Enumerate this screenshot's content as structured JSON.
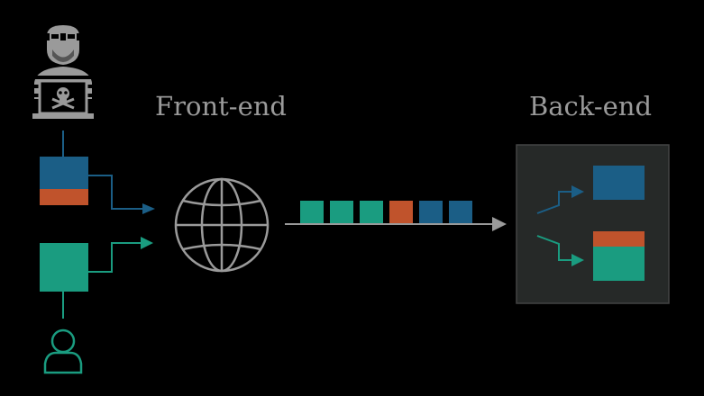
{
  "labels": {
    "front_end": "Front-end",
    "back_end": "Back-end"
  },
  "colors": {
    "background": "#000000",
    "blue": "#1b5e86",
    "orange": "#c0532c",
    "teal": "#1a9c80",
    "gray": "#9a9a9a",
    "panel": "#262928",
    "panel_border": "#444444"
  },
  "icons": {
    "attacker": "hacker-skull-laptop-icon",
    "user": "user-icon",
    "globe": "globe-icon"
  },
  "request_queue": [
    "teal",
    "teal",
    "teal",
    "orange",
    "blue",
    "blue"
  ]
}
